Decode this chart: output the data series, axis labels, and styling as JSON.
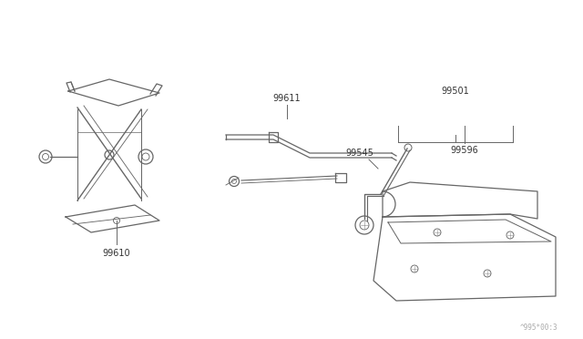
{
  "bg_color": "#ffffff",
  "line_color": "#666666",
  "label_color": "#333333",
  "fig_width": 6.4,
  "fig_height": 3.72,
  "dpi": 100,
  "watermark": "^995*00:3",
  "label_fontsize": 7.0,
  "lw": 0.9
}
